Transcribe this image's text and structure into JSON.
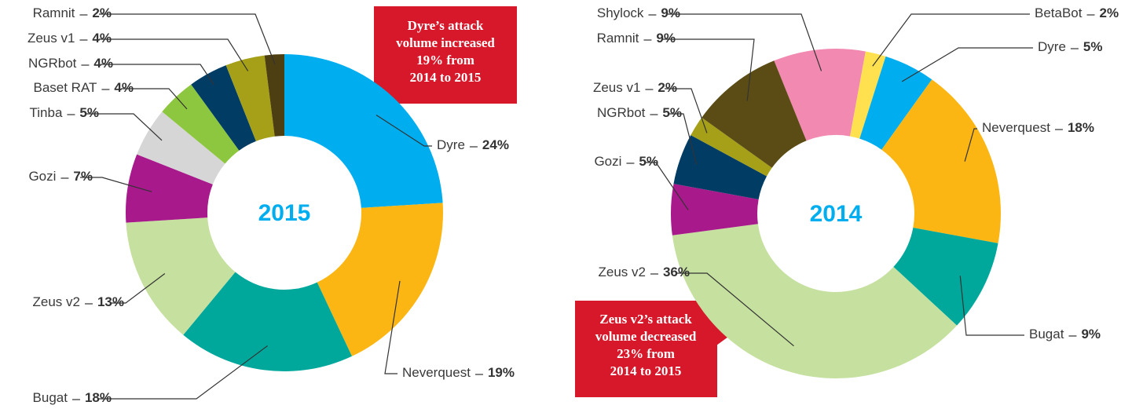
{
  "chart_data": [
    {
      "type": "donut",
      "center_label": "2015",
      "categories": [
        "Dyre",
        "Neverquest",
        "Bugat",
        "Zeus v2",
        "Gozi",
        "Tinba",
        "Baset RAT",
        "NGRbot",
        "Zeus v1",
        "Ramnit"
      ],
      "values": [
        24,
        19,
        18,
        13,
        7,
        5,
        4,
        4,
        4,
        2
      ],
      "value_labels": [
        "24%",
        "19%",
        "18%",
        "13%",
        "7%",
        "5%",
        "4%",
        "4%",
        "4%",
        "2%"
      ],
      "colors": [
        "#00aeef",
        "#fbb614",
        "#00a89c",
        "#c5e09f",
        "#a8198c",
        "#d6d6d6",
        "#8dc63f",
        "#003c64",
        "#a5a018",
        "#4d3f11"
      ],
      "annotation": [
        "Dyre’s attack",
        "volume increased",
        "19% from",
        "2014 to 2015"
      ]
    },
    {
      "type": "donut",
      "center_label": "2014",
      "categories": [
        "Shylock",
        "BetaBot",
        "Dyre",
        "Neverquest",
        "Bugat",
        "Zeus v2",
        "Gozi",
        "NGRbot",
        "Zeus v1",
        "Ramnit"
      ],
      "values": [
        9,
        2,
        5,
        18,
        9,
        36,
        5,
        5,
        2,
        9
      ],
      "value_labels": [
        "9%",
        "2%",
        "5%",
        "18%",
        "9%",
        "36%",
        "5%",
        "5%",
        "2%",
        "9%"
      ],
      "colors": [
        "#f189b0",
        "#ffe14f",
        "#00aeef",
        "#fbb614",
        "#00a89c",
        "#c5e09f",
        "#a8198c",
        "#003c64",
        "#a5a018",
        "#5b4c15"
      ],
      "annotation": [
        "Zeus v2’s attack",
        "volume decreased",
        "23% from",
        "2014 to 2015"
      ]
    }
  ]
}
